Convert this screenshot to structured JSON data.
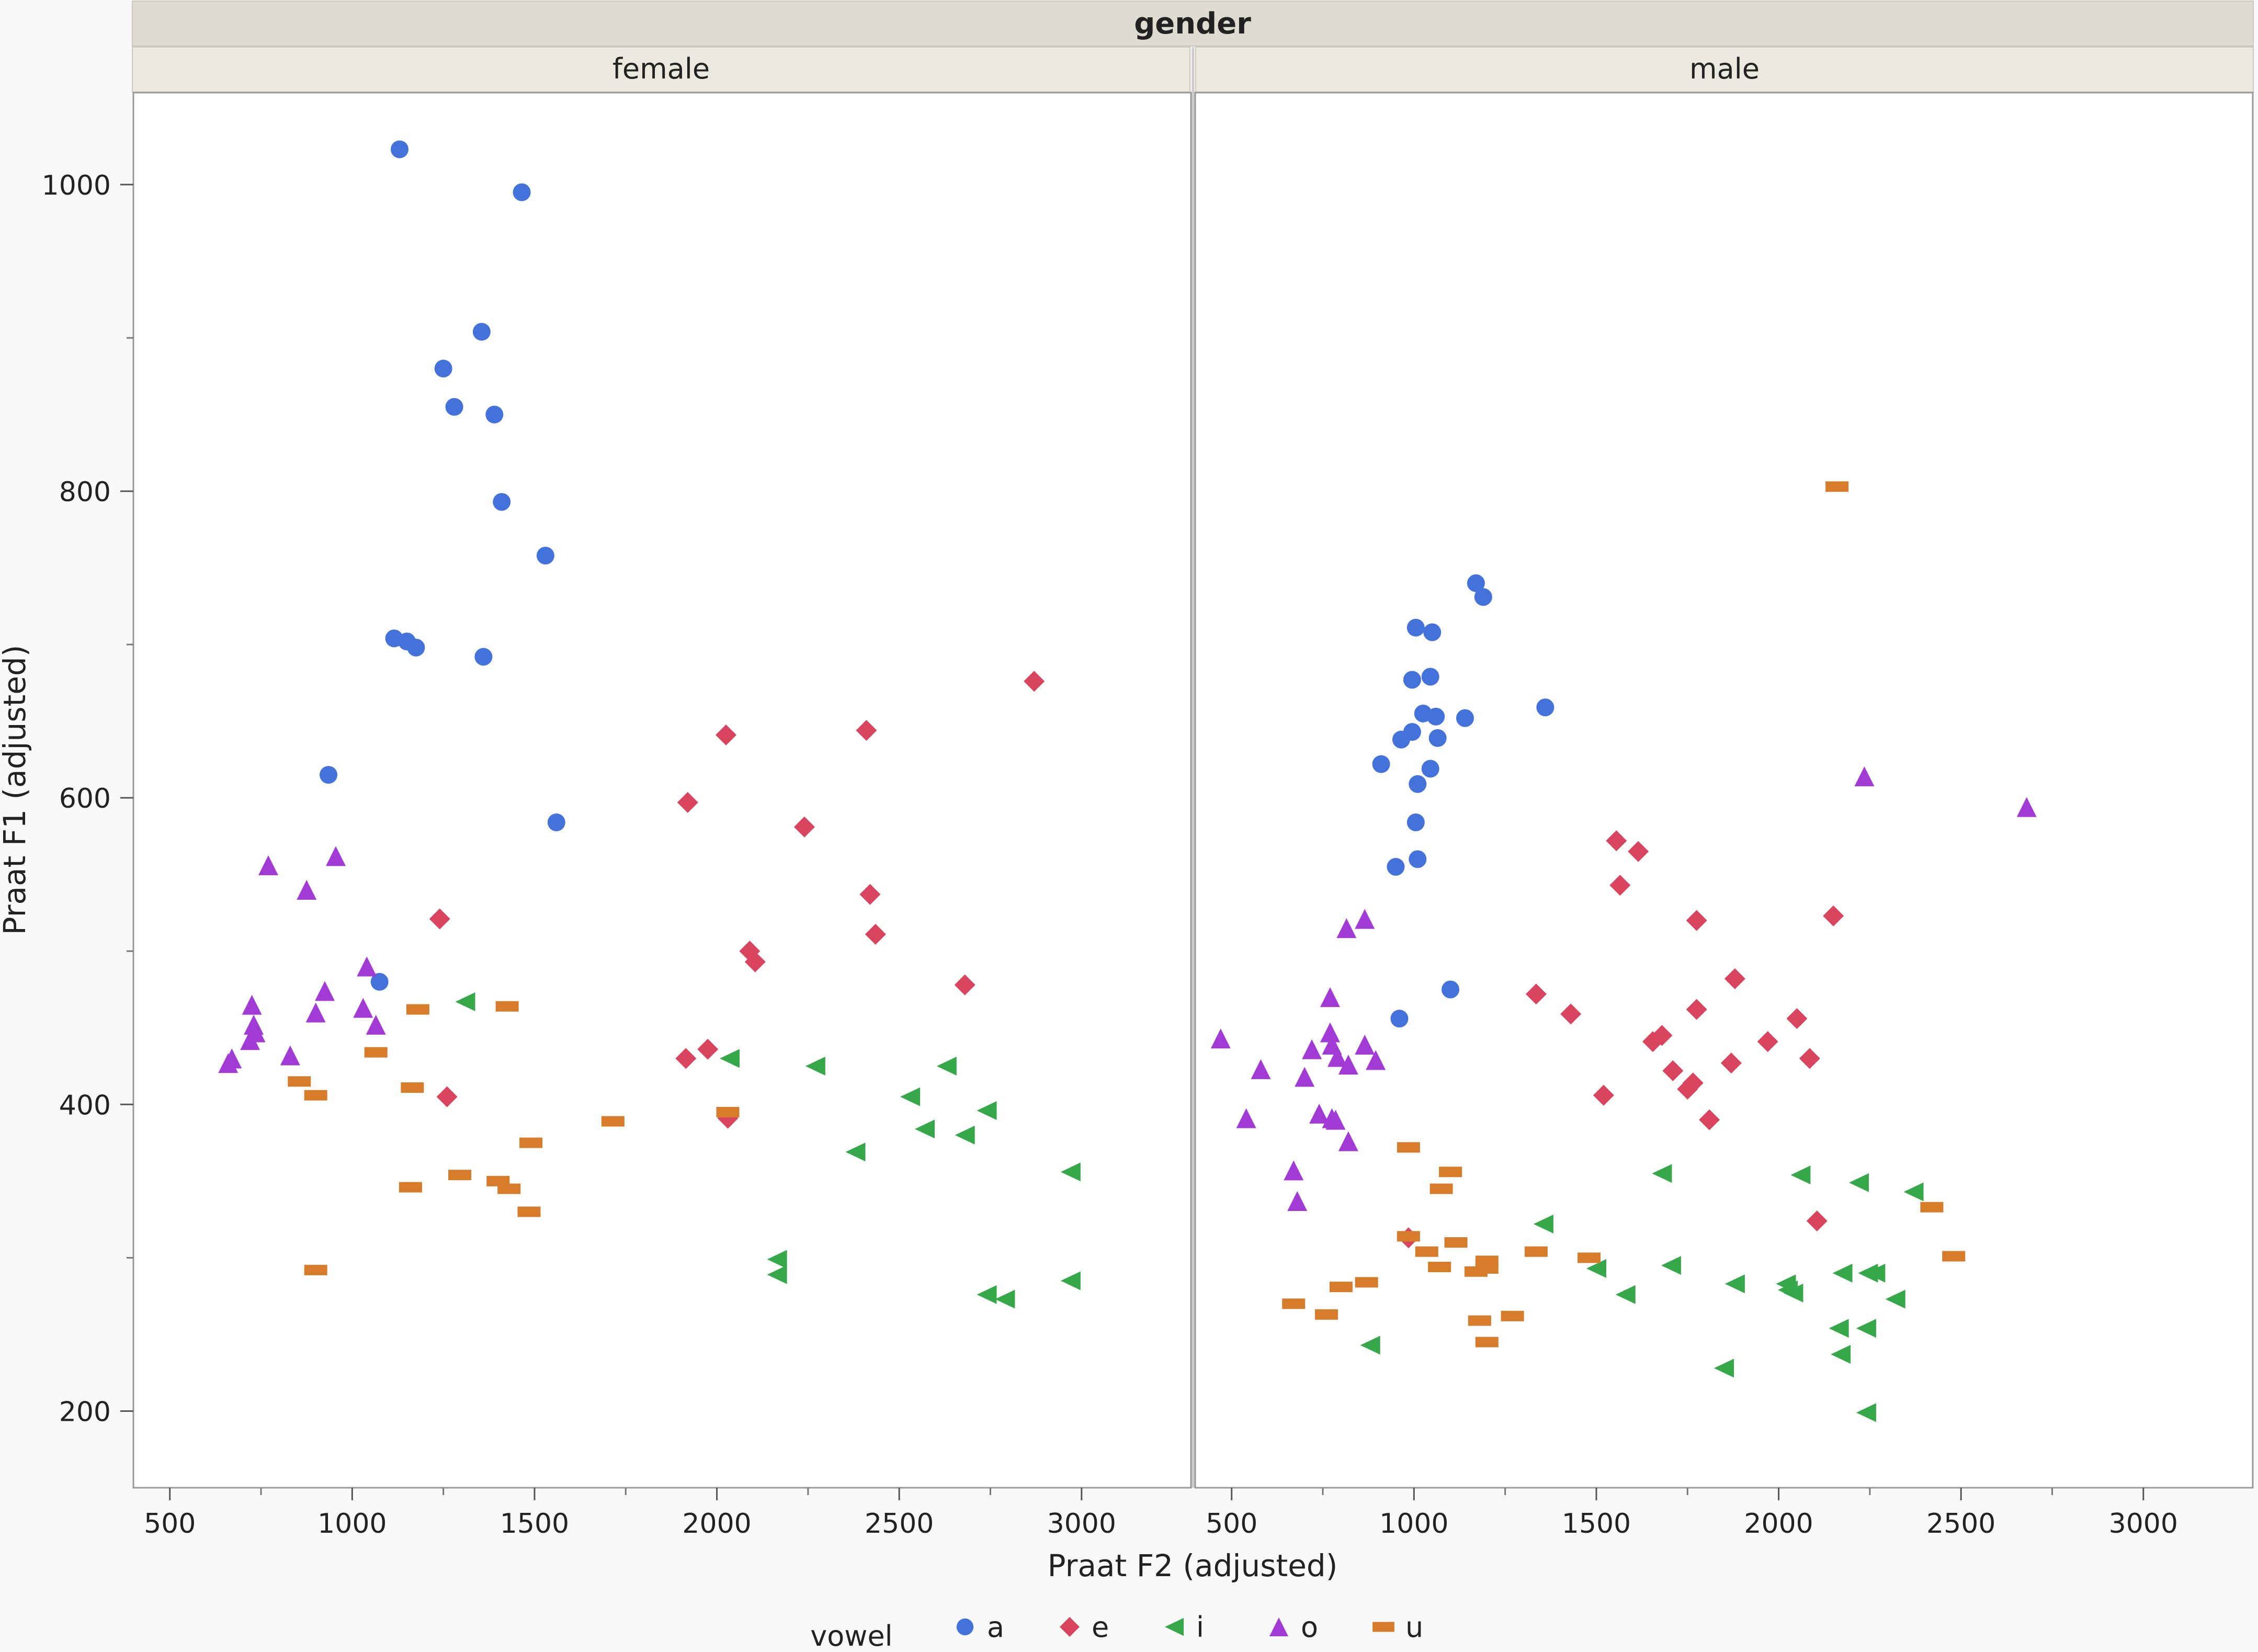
{
  "chart_data": {
    "type": "scatter",
    "facet_title": "gender",
    "xlabel": "Praat F2 (adjusted)",
    "ylabel": "Praat F1 (adjusted)",
    "xlim": [
      400,
      3300
    ],
    "ylim": [
      150,
      1060
    ],
    "xticks": [
      500,
      1000,
      1500,
      2000,
      2500,
      3000
    ],
    "yticks": [
      200,
      400,
      600,
      800,
      1000
    ],
    "legend": {
      "title": "vowel",
      "position": "bottom",
      "entries": [
        {
          "key": "a",
          "label": "a",
          "color": "#4472DB",
          "marker": "circle"
        },
        {
          "key": "e",
          "label": "e",
          "color": "#D9455F",
          "marker": "diamond"
        },
        {
          "key": "i",
          "label": "i",
          "color": "#36A84A",
          "marker": "triangle-left"
        },
        {
          "key": "o",
          "label": "o",
          "color": "#A23AD6",
          "marker": "triangle-up"
        },
        {
          "key": "u",
          "label": "u",
          "color": "#D67C2A",
          "marker": "bar"
        }
      ]
    },
    "panels": [
      {
        "name": "female",
        "series": {
          "a": [
            [
              1130,
              1023
            ],
            [
              1465,
              995
            ],
            [
              1355,
              904
            ],
            [
              1250,
              880
            ],
            [
              1280,
              855
            ],
            [
              1390,
              850
            ],
            [
              1410,
              793
            ],
            [
              1530,
              758
            ],
            [
              1115,
              704
            ],
            [
              1150,
              702
            ],
            [
              1175,
              698
            ],
            [
              1360,
              692
            ],
            [
              935,
              615
            ],
            [
              1560,
              584
            ],
            [
              1075,
              480
            ]
          ],
          "e": [
            [
              2870,
              676
            ],
            [
              2410,
              644
            ],
            [
              2025,
              641
            ],
            [
              1920,
              597
            ],
            [
              2240,
              581
            ],
            [
              2420,
              537
            ],
            [
              1240,
              521
            ],
            [
              2435,
              511
            ],
            [
              2090,
              500
            ],
            [
              2105,
              493
            ],
            [
              2680,
              478
            ],
            [
              1975,
              436
            ],
            [
              1915,
              430
            ],
            [
              1260,
              405
            ],
            [
              2030,
              391
            ]
          ],
          "i": [
            [
              1310,
              467
            ],
            [
              2035,
              430
            ],
            [
              2270,
              425
            ],
            [
              2630,
              425
            ],
            [
              2530,
              405
            ],
            [
              2740,
              396
            ],
            [
              2570,
              384
            ],
            [
              2680,
              380
            ],
            [
              2380,
              369
            ],
            [
              2970,
              356
            ],
            [
              2165,
              299
            ],
            [
              2165,
              289
            ],
            [
              2970,
              285
            ],
            [
              2740,
              276
            ],
            [
              2790,
              273
            ]
          ],
          "o": [
            [
              660,
              427
            ],
            [
              670,
              430
            ],
            [
              725,
              465
            ],
            [
              730,
              452
            ],
            [
              735,
              447
            ],
            [
              720,
              442
            ],
            [
              770,
              556
            ],
            [
              955,
              562
            ],
            [
              875,
              540
            ],
            [
              925,
              474
            ],
            [
              1040,
              490
            ],
            [
              1030,
              463
            ],
            [
              1065,
              452
            ],
            [
              900,
              460
            ],
            [
              830,
              432
            ]
          ],
          "u": [
            [
              1180,
              462
            ],
            [
              1425,
              464
            ],
            [
              1065,
              434
            ],
            [
              855,
              415
            ],
            [
              900,
              406
            ],
            [
              1165,
              411
            ],
            [
              2030,
              395
            ],
            [
              1715,
              389
            ],
            [
              1490,
              375
            ],
            [
              1295,
              354
            ],
            [
              1400,
              350
            ],
            [
              1160,
              346
            ],
            [
              1430,
              345
            ],
            [
              1485,
              330
            ],
            [
              900,
              292
            ]
          ]
        }
      },
      {
        "name": "male",
        "series": {
          "a": [
            [
              1170,
              740
            ],
            [
              1190,
              731
            ],
            [
              1005,
              711
            ],
            [
              1050,
              708
            ],
            [
              995,
              677
            ],
            [
              1045,
              679
            ],
            [
              1025,
              655
            ],
            [
              1060,
              653
            ],
            [
              1140,
              652
            ],
            [
              995,
              643
            ],
            [
              965,
              638
            ],
            [
              1065,
              639
            ],
            [
              1360,
              659
            ],
            [
              910,
              622
            ],
            [
              1045,
              619
            ],
            [
              1010,
              609
            ],
            [
              1005,
              584
            ],
            [
              950,
              555
            ],
            [
              1010,
              560
            ],
            [
              1100,
              475
            ],
            [
              960,
              456
            ]
          ],
          "e": [
            [
              1555,
              572
            ],
            [
              1615,
              565
            ],
            [
              1565,
              543
            ],
            [
              2150,
              523
            ],
            [
              1775,
              520
            ],
            [
              1880,
              482
            ],
            [
              1335,
              472
            ],
            [
              1430,
              459
            ],
            [
              1775,
              462
            ],
            [
              2050,
              456
            ],
            [
              1680,
              445
            ],
            [
              1655,
              441
            ],
            [
              1970,
              441
            ],
            [
              2085,
              430
            ],
            [
              1870,
              427
            ],
            [
              1710,
              422
            ],
            [
              1765,
              414
            ],
            [
              1750,
              410
            ],
            [
              1520,
              406
            ],
            [
              1810,
              390
            ],
            [
              2105,
              324
            ],
            [
              985,
              313
            ]
          ],
          "i": [
            [
              1680,
              355
            ],
            [
              2060,
              354
            ],
            [
              2220,
              349
            ],
            [
              2370,
              343
            ],
            [
              1355,
              322
            ],
            [
              1500,
              293
            ],
            [
              1705,
              295
            ],
            [
              1880,
              283
            ],
            [
              2020,
              283
            ],
            [
              2025,
              279
            ],
            [
              2040,
              277
            ],
            [
              2175,
              290
            ],
            [
              2245,
              290
            ],
            [
              2265,
              290
            ],
            [
              1580,
              276
            ],
            [
              2320,
              273
            ],
            [
              2165,
              254
            ],
            [
              2240,
              254
            ],
            [
              880,
              243
            ],
            [
              2170,
              237
            ],
            [
              1850,
              228
            ],
            [
              2240,
              199
            ]
          ],
          "o": [
            [
              2235,
              614
            ],
            [
              2680,
              594
            ],
            [
              815,
              515
            ],
            [
              865,
              521
            ],
            [
              770,
              470
            ],
            [
              470,
              443
            ],
            [
              720,
              436
            ],
            [
              775,
              439
            ],
            [
              770,
              447
            ],
            [
              865,
              439
            ],
            [
              895,
              429
            ],
            [
              790,
              431
            ],
            [
              820,
              426
            ],
            [
              580,
              423
            ],
            [
              700,
              418
            ],
            [
              740,
              394
            ],
            [
              785,
              390
            ],
            [
              775,
              391
            ],
            [
              540,
              391
            ],
            [
              820,
              376
            ],
            [
              670,
              357
            ],
            [
              680,
              337
            ]
          ],
          "u": [
            [
              2160,
              803
            ],
            [
              985,
              372
            ],
            [
              1100,
              356
            ],
            [
              1075,
              345
            ],
            [
              2420,
              333
            ],
            [
              985,
              314
            ],
            [
              1035,
              304
            ],
            [
              1115,
              310
            ],
            [
              1335,
              304
            ],
            [
              1480,
              300
            ],
            [
              2480,
              301
            ],
            [
              1200,
              298
            ],
            [
              1200,
              293
            ],
            [
              1070,
              294
            ],
            [
              1170,
              291
            ],
            [
              800,
              281
            ],
            [
              870,
              284
            ],
            [
              670,
              270
            ],
            [
              760,
              263
            ],
            [
              1270,
              262
            ],
            [
              1180,
              259
            ],
            [
              1200,
              245
            ]
          ]
        }
      }
    ]
  }
}
